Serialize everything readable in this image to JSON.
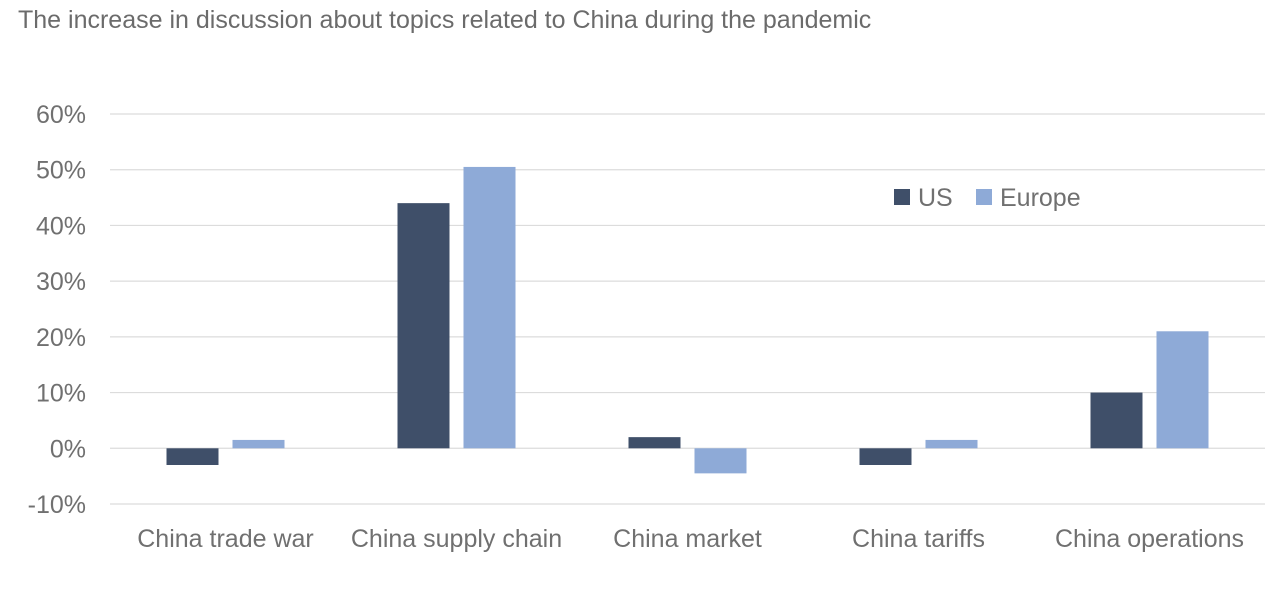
{
  "chart_data": {
    "type": "bar",
    "title": "The increase in discussion about topics related to China during the pandemic",
    "xlabel": "",
    "ylabel": "",
    "ylim": [
      -10,
      60
    ],
    "y_ticks": [
      60,
      50,
      40,
      30,
      20,
      10,
      0,
      -10
    ],
    "y_tick_labels": [
      "60%",
      "50%",
      "40%",
      "30%",
      "20%",
      "10%",
      "0%",
      "-10%"
    ],
    "grid": true,
    "legend_position": "top-right",
    "categories": [
      "China trade war",
      "China supply chain",
      "China market",
      "China tariffs",
      "China operations"
    ],
    "series": [
      {
        "name": "US",
        "color": "#3f4f69",
        "values": [
          -3,
          44,
          2,
          -3,
          10
        ]
      },
      {
        "name": "Europe",
        "color": "#8eaad7",
        "values": [
          1.5,
          50.5,
          -4.5,
          1.5,
          21
        ]
      }
    ]
  }
}
